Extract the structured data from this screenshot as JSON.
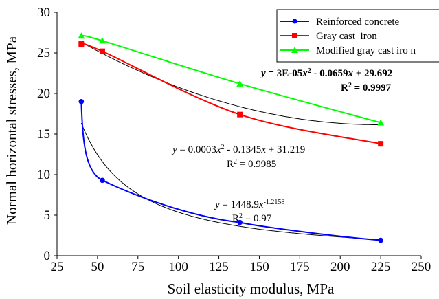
{
  "chart_data": {
    "type": "line",
    "xlabel": "Soil elasticity modulus, MPa",
    "ylabel": "Normal horizontal stresses, MPa",
    "xlim": [
      25,
      250
    ],
    "ylim": [
      0,
      30
    ],
    "xticks": [
      25,
      50,
      75,
      100,
      125,
      150,
      175,
      200,
      225,
      250
    ],
    "yticks": [
      0,
      5,
      10,
      15,
      20,
      25,
      30
    ],
    "grid": false,
    "legend_position": "top-right",
    "series": [
      {
        "name": "Reinforced concrete",
        "color": "#0000FF",
        "marker": "circle",
        "x": [
          40,
          53,
          138,
          225
        ],
        "y": [
          19.0,
          9.3,
          4.1,
          1.9
        ]
      },
      {
        "name": "Gray cast  iron",
        "color": "#FF0000",
        "marker": "square",
        "x": [
          40,
          53,
          138,
          225
        ],
        "y": [
          26.1,
          25.2,
          17.4,
          13.8
        ]
      },
      {
        "name": "Modified gray cast iro n",
        "color": "#00FF00",
        "marker": "triangle",
        "x": [
          40,
          53,
          138,
          225
        ],
        "y": [
          27.1,
          26.5,
          21.2,
          16.4
        ]
      }
    ],
    "trendlines": [
      {
        "series": "Gray cast  iron",
        "kind": "polynomial",
        "coefficients": [
          0.0003,
          -0.1345,
          31.219
        ],
        "x_range": [
          40,
          225
        ],
        "color": "#000000"
      },
      {
        "series": "Reinforced concrete",
        "kind": "power",
        "a": 1448.9,
        "b": -1.2158,
        "x_range": [
          40,
          225
        ],
        "color": "#000000"
      }
    ],
    "annotations": [
      {
        "id": "green",
        "bold": true,
        "line1": {
          "pre": "",
          "var": "y",
          "mid": " = 3E-05",
          "var2": "x",
          "sup": "2",
          "post": " - 0.0659",
          "var3": "x",
          "tail": " + 29.692"
        },
        "line2": {
          "pre": "R",
          "sup": "2",
          "post": " = 0.9997"
        }
      },
      {
        "id": "red",
        "bold": false,
        "line1": {
          "pre": "",
          "var": "y",
          "mid": " = 0.0003",
          "var2": "x",
          "sup": "2",
          "post": " - 0.1345",
          "var3": "x",
          "tail": " + 31.219"
        },
        "line2": {
          "pre": "R",
          "sup": "2",
          "post": " = 0.9985"
        }
      },
      {
        "id": "blue",
        "bold": false,
        "line1": {
          "pre": "",
          "var": "y",
          "mid": " = 1448.9",
          "var2": "x",
          "sup": "-1.2158",
          "post": "",
          "var3": "",
          "tail": ""
        },
        "line2": {
          "pre": "R",
          "sup": "2",
          "post": " = 0.97"
        }
      }
    ]
  }
}
